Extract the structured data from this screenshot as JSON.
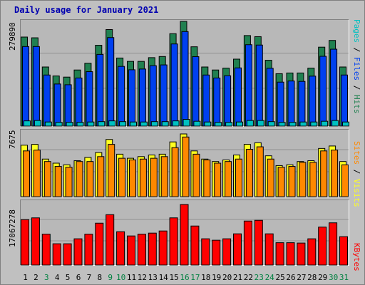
{
  "title": "Daily usage for January 2021",
  "colors": {
    "pages": "#00c0c0",
    "files": "#0040f0",
    "hits": "#208050",
    "sites": "#ff8800",
    "visits": "#ffff20",
    "kbytes": "#ff0000",
    "weekend_day": "#008040",
    "weekday": "#000000"
  },
  "axis_max_labels": {
    "hits": "279890",
    "visits": "7675",
    "kbytes": "17067278"
  },
  "right_labels": {
    "top": [
      {
        "text": "Pages",
        "color": "#00c0c0"
      },
      {
        "text": " / ",
        "color": "#000000"
      },
      {
        "text": "Files",
        "color": "#0040f0"
      },
      {
        "text": " / ",
        "color": "#000000"
      },
      {
        "text": "Hits",
        "color": "#208050"
      }
    ],
    "middle": [
      {
        "text": "Sites",
        "color": "#ff8800"
      },
      {
        "text": " / ",
        "color": "#000000"
      },
      {
        "text": "Visits",
        "color": "#ffff20"
      }
    ],
    "bottom": [
      {
        "text": "KBytes",
        "color": "#ff0000"
      }
    ]
  },
  "chart_data": [
    {
      "type": "bar",
      "title": "",
      "categories": [
        "1",
        "2",
        "3",
        "4",
        "5",
        "6",
        "7",
        "8",
        "9",
        "10",
        "11",
        "12",
        "13",
        "14",
        "15",
        "16",
        "17",
        "18",
        "19",
        "20",
        "21",
        "22",
        "23",
        "24",
        "25",
        "26",
        "27",
        "28",
        "29",
        "30",
        "31"
      ],
      "weekend_categories": [
        "3",
        "9",
        "10",
        "16",
        "17",
        "23",
        "24",
        "30",
        "31"
      ],
      "ylim": [
        0,
        279890
      ],
      "series": [
        {
          "name": "Hits",
          "values": [
            238000,
            236000,
            158000,
            134000,
            131000,
            150000,
            168000,
            216000,
            258000,
            182000,
            173000,
            173000,
            183000,
            186000,
            247000,
            279890,
            212000,
            158000,
            150000,
            155000,
            179000,
            242000,
            239000,
            176000,
            140000,
            142000,
            142000,
            155000,
            211000,
            229000,
            158000
          ]
        },
        {
          "name": "Files",
          "values": [
            224000,
            224000,
            148000,
            124000,
            122000,
            140000,
            157000,
            203000,
            248000,
            171000,
            162000,
            164000,
            173000,
            175000,
            231000,
            264000,
            197000,
            148000,
            140000,
            146000,
            167000,
            229000,
            228000,
            166000,
            129000,
            132000,
            131000,
            145000,
            198000,
            217000,
            148000
          ]
        },
        {
          "name": "Pages",
          "values": [
            14000,
            15000,
            11000,
            10000,
            10000,
            10000,
            11000,
            12000,
            14000,
            12000,
            11000,
            11000,
            12000,
            12000,
            14000,
            18000,
            13000,
            11000,
            10000,
            10000,
            11000,
            15000,
            15000,
            12000,
            10000,
            10000,
            11000,
            11000,
            13000,
            15000,
            11000
          ]
        }
      ]
    },
    {
      "type": "bar",
      "title": "",
      "categories": [
        "1",
        "2",
        "3",
        "4",
        "5",
        "6",
        "7",
        "8",
        "9",
        "10",
        "11",
        "12",
        "13",
        "14",
        "15",
        "16",
        "17",
        "18",
        "19",
        "20",
        "21",
        "22",
        "23",
        "24",
        "25",
        "26",
        "27",
        "28",
        "29",
        "30",
        "31"
      ],
      "ylim": [
        0,
        7675
      ],
      "series": [
        {
          "name": "Visits",
          "values": [
            6300,
            6400,
            4600,
            4100,
            3900,
            4400,
            4800,
            5400,
            7000,
            5200,
            4700,
            4900,
            5100,
            5200,
            6700,
            7675,
            5600,
            4600,
            4300,
            4500,
            5100,
            6400,
            6600,
            5000,
            3800,
            3900,
            4300,
            4400,
            5900,
            6200,
            4300
          ]
        },
        {
          "name": "Sites",
          "values": [
            5600,
            5700,
            4300,
            3700,
            3600,
            4300,
            4300,
            4900,
            6400,
            4700,
            4500,
            4600,
            4700,
            4900,
            6000,
            7300,
            5200,
            4500,
            4100,
            4300,
            4600,
            5800,
            6100,
            4600,
            3600,
            3700,
            4200,
            4200,
            5600,
            5700,
            3900
          ]
        }
      ]
    },
    {
      "type": "bar",
      "title": "",
      "categories": [
        "1",
        "2",
        "3",
        "4",
        "5",
        "6",
        "7",
        "8",
        "9",
        "10",
        "11",
        "12",
        "13",
        "14",
        "15",
        "16",
        "17",
        "18",
        "19",
        "20",
        "21",
        "22",
        "23",
        "24",
        "25",
        "26",
        "27",
        "28",
        "29",
        "30",
        "31"
      ],
      "ylim": [
        0,
        17067278
      ],
      "series": [
        {
          "name": "KBytes",
          "values": [
            12800000,
            13300000,
            8700000,
            6000000,
            6000000,
            7400000,
            8700000,
            11800000,
            14200000,
            9400000,
            8200000,
            8700000,
            9000000,
            9600000,
            13300000,
            17067278,
            11000000,
            7400000,
            7000000,
            7400000,
            8800000,
            12400000,
            12600000,
            8800000,
            6300000,
            6300000,
            6200000,
            7400000,
            10700000,
            11900000,
            8000000
          ]
        }
      ]
    }
  ]
}
